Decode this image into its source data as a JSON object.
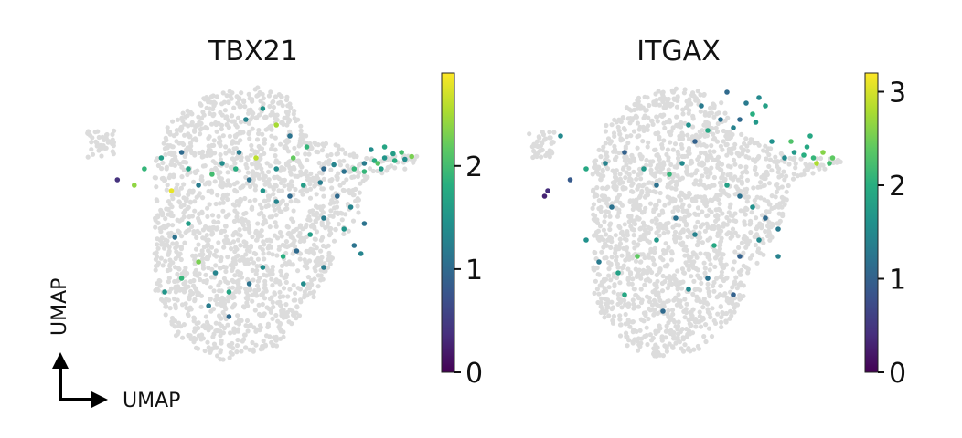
{
  "chart_data": [
    {
      "type": "scatter",
      "title": "TBX21",
      "xlabel": "UMAP",
      "ylabel": "UMAP",
      "colorbar": {
        "min": 0,
        "max": 2.9,
        "ticks": [
          "0",
          "1",
          "2"
        ],
        "colormap": "viridis"
      },
      "background_color": "#dcdcdc",
      "highlight_points": [
        {
          "x": 0.905,
          "y": 0.755,
          "v": 1.6
        },
        {
          "x": 0.93,
          "y": 0.76,
          "v": 2.0
        },
        {
          "x": 0.96,
          "y": 0.745,
          "v": 2.3
        },
        {
          "x": 0.88,
          "y": 0.74,
          "v": 1.5
        },
        {
          "x": 0.85,
          "y": 0.73,
          "v": 1.8
        },
        {
          "x": 0.82,
          "y": 0.72,
          "v": 1.2
        },
        {
          "x": 0.79,
          "y": 0.7,
          "v": 1.9
        },
        {
          "x": 0.76,
          "y": 0.69,
          "v": 1.1
        },
        {
          "x": 0.73,
          "y": 0.715,
          "v": 1.3
        },
        {
          "x": 0.7,
          "y": 0.7,
          "v": 1.0
        },
        {
          "x": 0.88,
          "y": 0.78,
          "v": 1.7
        },
        {
          "x": 0.84,
          "y": 0.77,
          "v": 1.4
        },
        {
          "x": 0.69,
          "y": 0.65,
          "v": 1.2
        },
        {
          "x": 0.64,
          "y": 0.64,
          "v": 1.6
        },
        {
          "x": 0.6,
          "y": 0.6,
          "v": 1.0
        },
        {
          "x": 0.56,
          "y": 0.58,
          "v": 1.3
        },
        {
          "x": 0.52,
          "y": 0.62,
          "v": 1.5
        },
        {
          "x": 0.48,
          "y": 0.66,
          "v": 1.1
        },
        {
          "x": 0.44,
          "y": 0.7,
          "v": 1.8
        },
        {
          "x": 0.4,
          "y": 0.72,
          "v": 1.4
        },
        {
          "x": 0.37,
          "y": 0.68,
          "v": 2.0
        },
        {
          "x": 0.33,
          "y": 0.64,
          "v": 1.2
        },
        {
          "x": 0.3,
          "y": 0.7,
          "v": 1.7
        },
        {
          "x": 0.28,
          "y": 0.76,
          "v": 1.0
        },
        {
          "x": 0.25,
          "y": 0.62,
          "v": 2.8
        },
        {
          "x": 0.22,
          "y": 0.74,
          "v": 1.6
        },
        {
          "x": 0.17,
          "y": 0.7,
          "v": 1.9
        },
        {
          "x": 0.14,
          "y": 0.64,
          "v": 2.4
        },
        {
          "x": 0.09,
          "y": 0.66,
          "v": 0.4
        },
        {
          "x": 0.47,
          "y": 0.88,
          "v": 1.3
        },
        {
          "x": 0.52,
          "y": 0.92,
          "v": 1.5
        },
        {
          "x": 0.56,
          "y": 0.86,
          "v": 2.5
        },
        {
          "x": 0.6,
          "y": 0.82,
          "v": 1.1
        },
        {
          "x": 0.65,
          "y": 0.78,
          "v": 1.9
        },
        {
          "x": 0.61,
          "y": 0.74,
          "v": 2.2
        },
        {
          "x": 0.56,
          "y": 0.7,
          "v": 1.4
        },
        {
          "x": 0.5,
          "y": 0.74,
          "v": 2.6
        },
        {
          "x": 0.45,
          "y": 0.76,
          "v": 1.2
        },
        {
          "x": 0.74,
          "y": 0.6,
          "v": 1.0
        },
        {
          "x": 0.78,
          "y": 0.56,
          "v": 1.3
        },
        {
          "x": 0.82,
          "y": 0.5,
          "v": 1.1
        },
        {
          "x": 0.76,
          "y": 0.48,
          "v": 1.5
        },
        {
          "x": 0.7,
          "y": 0.52,
          "v": 1.2
        },
        {
          "x": 0.66,
          "y": 0.46,
          "v": 1.6
        },
        {
          "x": 0.62,
          "y": 0.4,
          "v": 1.0
        },
        {
          "x": 0.58,
          "y": 0.38,
          "v": 1.8
        },
        {
          "x": 0.52,
          "y": 0.34,
          "v": 1.4
        },
        {
          "x": 0.48,
          "y": 0.28,
          "v": 1.1
        },
        {
          "x": 0.42,
          "y": 0.25,
          "v": 1.7
        },
        {
          "x": 0.38,
          "y": 0.32,
          "v": 1.3
        },
        {
          "x": 0.33,
          "y": 0.36,
          "v": 2.3
        },
        {
          "x": 0.28,
          "y": 0.3,
          "v": 1.9
        },
        {
          "x": 0.23,
          "y": 0.25,
          "v": 1.5
        },
        {
          "x": 0.26,
          "y": 0.45,
          "v": 1.1
        },
        {
          "x": 0.3,
          "y": 0.5,
          "v": 1.6
        },
        {
          "x": 0.36,
          "y": 0.2,
          "v": 1.2
        },
        {
          "x": 0.42,
          "y": 0.16,
          "v": 1.0
        },
        {
          "x": 0.64,
          "y": 0.28,
          "v": 1.4
        },
        {
          "x": 0.7,
          "y": 0.34,
          "v": 1.2
        },
        {
          "x": 0.79,
          "y": 0.42,
          "v": 1.1
        },
        {
          "x": 0.81,
          "y": 0.39,
          "v": 1.3
        },
        {
          "x": 0.86,
          "y": 0.72,
          "v": 2.1
        },
        {
          "x": 0.91,
          "y": 0.73,
          "v": 1.8
        },
        {
          "x": 0.94,
          "y": 0.735,
          "v": 1.4
        },
        {
          "x": 0.87,
          "y": 0.7,
          "v": 1.6
        },
        {
          "x": 0.82,
          "y": 0.69,
          "v": 1.9
        }
      ]
    },
    {
      "type": "scatter",
      "title": "ITGAX",
      "xlabel": "UMAP",
      "ylabel": "UMAP",
      "colorbar": {
        "min": 0,
        "max": 3.2,
        "ticks": [
          "0",
          "1",
          "2",
          "3"
        ],
        "colormap": "viridis"
      },
      "background_color": "#dcdcdc",
      "highlight_points": [
        {
          "x": 0.89,
          "y": 0.74,
          "v": 2.1
        },
        {
          "x": 0.92,
          "y": 0.76,
          "v": 2.6
        },
        {
          "x": 0.95,
          "y": 0.74,
          "v": 2.4
        },
        {
          "x": 0.86,
          "y": 0.75,
          "v": 2.0
        },
        {
          "x": 0.83,
          "y": 0.76,
          "v": 1.7
        },
        {
          "x": 0.8,
          "y": 0.74,
          "v": 1.5
        },
        {
          "x": 0.9,
          "y": 0.72,
          "v": 2.8
        },
        {
          "x": 0.94,
          "y": 0.72,
          "v": 2.2
        },
        {
          "x": 0.87,
          "y": 0.78,
          "v": 1.9
        },
        {
          "x": 0.72,
          "y": 0.96,
          "v": 1.5
        },
        {
          "x": 0.74,
          "y": 0.93,
          "v": 1.8
        },
        {
          "x": 0.7,
          "y": 0.9,
          "v": 2.0
        },
        {
          "x": 0.68,
          "y": 0.94,
          "v": 1.3
        },
        {
          "x": 0.71,
          "y": 0.87,
          "v": 1.7
        },
        {
          "x": 0.66,
          "y": 0.88,
          "v": 1.1
        },
        {
          "x": 0.64,
          "y": 0.85,
          "v": 1.4
        },
        {
          "x": 0.6,
          "y": 0.88,
          "v": 1.2
        },
        {
          "x": 0.56,
          "y": 0.84,
          "v": 1.9
        },
        {
          "x": 0.52,
          "y": 0.8,
          "v": 1.0
        },
        {
          "x": 0.5,
          "y": 0.86,
          "v": 1.6
        },
        {
          "x": 0.54,
          "y": 0.93,
          "v": 1.3
        },
        {
          "x": 0.62,
          "y": 0.98,
          "v": 1.1
        },
        {
          "x": 0.48,
          "y": 0.72,
          "v": 1.5
        },
        {
          "x": 0.44,
          "y": 0.68,
          "v": 2.1
        },
        {
          "x": 0.4,
          "y": 0.64,
          "v": 1.2
        },
        {
          "x": 0.36,
          "y": 0.7,
          "v": 1.7
        },
        {
          "x": 0.3,
          "y": 0.76,
          "v": 1.0
        },
        {
          "x": 0.24,
          "y": 0.72,
          "v": 1.4
        },
        {
          "x": 0.18,
          "y": 0.7,
          "v": 1.9
        },
        {
          "x": 0.13,
          "y": 0.66,
          "v": 0.9
        },
        {
          "x": 0.1,
          "y": 0.82,
          "v": 1.5
        },
        {
          "x": 0.06,
          "y": 0.62,
          "v": 0.4
        },
        {
          "x": 0.05,
          "y": 0.6,
          "v": 0.3
        },
        {
          "x": 0.62,
          "y": 0.64,
          "v": 1.8
        },
        {
          "x": 0.66,
          "y": 0.6,
          "v": 1.2
        },
        {
          "x": 0.7,
          "y": 0.56,
          "v": 1.6
        },
        {
          "x": 0.74,
          "y": 0.52,
          "v": 1.1
        },
        {
          "x": 0.78,
          "y": 0.48,
          "v": 1.3
        },
        {
          "x": 0.72,
          "y": 0.44,
          "v": 1.5
        },
        {
          "x": 0.66,
          "y": 0.38,
          "v": 1.0
        },
        {
          "x": 0.58,
          "y": 0.42,
          "v": 1.9
        },
        {
          "x": 0.52,
          "y": 0.46,
          "v": 1.4
        },
        {
          "x": 0.46,
          "y": 0.52,
          "v": 1.2
        },
        {
          "x": 0.4,
          "y": 0.44,
          "v": 1.7
        },
        {
          "x": 0.34,
          "y": 0.38,
          "v": 2.4
        },
        {
          "x": 0.28,
          "y": 0.32,
          "v": 1.8
        },
        {
          "x": 0.22,
          "y": 0.36,
          "v": 1.3
        },
        {
          "x": 0.18,
          "y": 0.44,
          "v": 1.6
        },
        {
          "x": 0.3,
          "y": 0.24,
          "v": 1.9
        },
        {
          "x": 0.42,
          "y": 0.18,
          "v": 1.1
        },
        {
          "x": 0.5,
          "y": 0.26,
          "v": 1.5
        },
        {
          "x": 0.56,
          "y": 0.3,
          "v": 1.2
        },
        {
          "x": 0.64,
          "y": 0.24,
          "v": 1.0
        },
        {
          "x": 0.78,
          "y": 0.38,
          "v": 1.4
        },
        {
          "x": 0.82,
          "y": 0.8,
          "v": 2.3
        },
        {
          "x": 0.76,
          "y": 0.8,
          "v": 1.6
        },
        {
          "x": 0.88,
          "y": 0.82,
          "v": 1.9
        },
        {
          "x": 0.26,
          "y": 0.56,
          "v": 1.2
        }
      ]
    }
  ],
  "corner_axes": {
    "x_label": "UMAP",
    "y_label": "UMAP"
  }
}
